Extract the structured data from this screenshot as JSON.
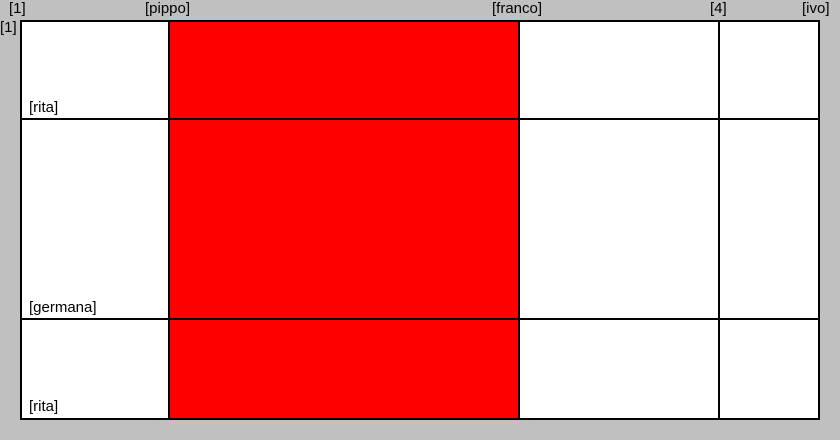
{
  "column_labels": [
    "[1]",
    "[pippo]",
    "[franco]",
    "[4]",
    "[ivo]"
  ],
  "row_label": "[1]",
  "row_labels": [
    "[rita]",
    "[germana]",
    "[rita]"
  ],
  "colors": {
    "background": "#c0c0c0",
    "cell": "#ffffff",
    "highlight": "#ff0000",
    "grid_line": "#000000"
  }
}
